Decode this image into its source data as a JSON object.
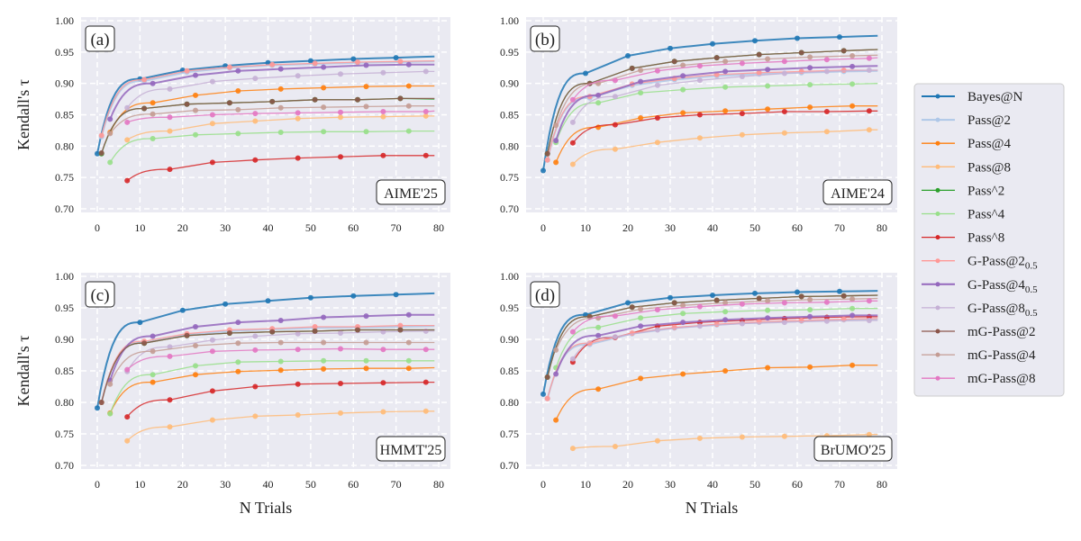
{
  "legend": [
    {
      "name": "Bayes@N",
      "sub": "",
      "color": "#1f77b4"
    },
    {
      "name": "Pass@2",
      "sub": "",
      "color": "#aec7e8"
    },
    {
      "name": "Pass@4",
      "sub": "",
      "color": "#ff7f0e"
    },
    {
      "name": "Pass@8",
      "sub": "",
      "color": "#ffbb78"
    },
    {
      "name": "Pass^2",
      "sub": "",
      "color": "#2ca02c"
    },
    {
      "name": "Pass^4",
      "sub": "",
      "color": "#98df8a"
    },
    {
      "name": "Pass^8",
      "sub": "",
      "color": "#d62728"
    },
    {
      "name": "G-Pass@2",
      "sub": "0.5",
      "color": "#ff9896"
    },
    {
      "name": "G-Pass@4",
      "sub": "0.5",
      "color": "#9467bd"
    },
    {
      "name": "G-Pass@8",
      "sub": "0.5",
      "color": "#c5b0d5"
    },
    {
      "name": "mG-Pass@2",
      "sub": "",
      "color": "#8c564b"
    },
    {
      "name": "mG-Pass@4",
      "sub": "",
      "color": "#c49c94"
    },
    {
      "name": "mG-Pass@8",
      "sub": "",
      "color": "#e377c2"
    }
  ],
  "chart_data": [
    {
      "type": "line",
      "panel_label": "(a)",
      "dataset": "AIME'25",
      "xlabel": "",
      "ylabel": "Kendall's τ",
      "xlim": [
        0,
        80
      ],
      "ylim": [
        0.7,
        1.0
      ],
      "xticks": [
        "0",
        "10",
        "20",
        "30",
        "40",
        "50",
        "60",
        "70",
        "80"
      ],
      "yticks": [
        "0.70",
        "0.75",
        "0.80",
        "0.85",
        "0.90",
        "0.95",
        "1.00"
      ],
      "grid": true,
      "x_end": 79,
      "marker_every": 10,
      "series": [
        {
          "name": "Bayes@N",
          "x_start": 0,
          "y": [
            0.788,
            0.907,
            0.921,
            0.928,
            0.933,
            0.936,
            0.939,
            0.941,
            0.943
          ]
        },
        {
          "name": "Pass@2",
          "x_start": 1,
          "y": [
            0.815,
            0.904,
            0.918,
            0.925,
            0.929,
            0.931,
            0.933,
            0.934,
            0.935
          ]
        },
        {
          "name": "Pass@4",
          "x_start": 3,
          "y": [
            0.822,
            0.869,
            0.881,
            0.888,
            0.891,
            0.893,
            0.895,
            0.896,
            0.896
          ]
        },
        {
          "name": "Pass@8",
          "x_start": 7,
          "y": [
            0.81,
            0.824,
            0.836,
            0.84,
            0.844,
            0.846,
            0.847,
            0.848,
            0.848
          ]
        },
        {
          "name": "Pass^2",
          "x_start": 1,
          "y": [
            0.788,
            0.86,
            0.867,
            0.869,
            0.871,
            0.874,
            0.874,
            0.876,
            0.875
          ]
        },
        {
          "name": "Pass^4",
          "x_start": 3,
          "y": [
            0.774,
            0.812,
            0.818,
            0.82,
            0.822,
            0.823,
            0.823,
            0.824,
            0.824
          ]
        },
        {
          "name": "Pass^8",
          "x_start": 7,
          "y": [
            0.745,
            0.763,
            0.774,
            0.778,
            0.781,
            0.783,
            0.785,
            0.785,
            0.785
          ]
        },
        {
          "name": "G-Pass@2_0.5",
          "x_start": 1,
          "y": [
            0.817,
            0.906,
            0.92,
            0.926,
            0.93,
            0.932,
            0.934,
            0.935,
            0.936
          ]
        },
        {
          "name": "G-Pass@4_0.5",
          "x_start": 3,
          "y": [
            0.843,
            0.9,
            0.913,
            0.92,
            0.923,
            0.926,
            0.929,
            0.93,
            0.93
          ]
        },
        {
          "name": "G-Pass@8_0.5",
          "x_start": 7,
          "y": [
            0.861,
            0.891,
            0.903,
            0.908,
            0.912,
            0.915,
            0.917,
            0.919,
            0.919
          ]
        },
        {
          "name": "mG-Pass@2",
          "x_start": 1,
          "y": [
            0.789,
            0.86,
            0.867,
            0.869,
            0.871,
            0.874,
            0.874,
            0.876,
            0.876
          ]
        },
        {
          "name": "mG-Pass@4",
          "x_start": 3,
          "y": [
            0.82,
            0.851,
            0.857,
            0.858,
            0.861,
            0.862,
            0.863,
            0.864,
            0.864
          ]
        },
        {
          "name": "mG-Pass@8",
          "x_start": 7,
          "y": [
            0.838,
            0.846,
            0.85,
            0.852,
            0.853,
            0.854,
            0.855,
            0.855,
            0.856
          ]
        }
      ]
    },
    {
      "type": "line",
      "panel_label": "(b)",
      "dataset": "AIME'24",
      "xlabel": "",
      "ylabel": "",
      "xlim": [
        0,
        80
      ],
      "ylim": [
        0.7,
        1.0
      ],
      "xticks": [
        "0",
        "10",
        "20",
        "30",
        "40",
        "50",
        "60",
        "70",
        "80"
      ],
      "yticks": [
        "0.70",
        "0.75",
        "0.80",
        "0.85",
        "0.90",
        "0.95",
        "1.00"
      ],
      "grid": true,
      "x_end": 79,
      "marker_every": 10,
      "series": [
        {
          "name": "Bayes@N",
          "x_start": 0,
          "y": [
            0.761,
            0.916,
            0.944,
            0.956,
            0.963,
            0.968,
            0.972,
            0.974,
            0.976
          ]
        },
        {
          "name": "Pass@2",
          "x_start": 1,
          "y": [
            0.778,
            0.877,
            0.897,
            0.906,
            0.912,
            0.915,
            0.917,
            0.919,
            0.92
          ]
        },
        {
          "name": "Pass@4",
          "x_start": 3,
          "y": [
            0.774,
            0.83,
            0.845,
            0.853,
            0.856,
            0.859,
            0.862,
            0.864,
            0.864
          ]
        },
        {
          "name": "Pass@8",
          "x_start": 7,
          "y": [
            0.771,
            0.795,
            0.806,
            0.813,
            0.818,
            0.821,
            0.823,
            0.826,
            0.826
          ]
        },
        {
          "name": "Pass^2",
          "x_start": 1,
          "y": [
            0.788,
            0.9,
            0.924,
            0.935,
            0.941,
            0.946,
            0.949,
            0.952,
            0.954
          ]
        },
        {
          "name": "Pass^4",
          "x_start": 3,
          "y": [
            0.806,
            0.869,
            0.885,
            0.89,
            0.894,
            0.896,
            0.898,
            0.899,
            0.9
          ]
        },
        {
          "name": "Pass^8",
          "x_start": 7,
          "y": [
            0.805,
            0.834,
            0.845,
            0.85,
            0.852,
            0.855,
            0.855,
            0.856,
            0.856
          ]
        },
        {
          "name": "G-Pass@2_0.5",
          "x_start": 1,
          "y": [
            0.778,
            0.879,
            0.899,
            0.908,
            0.914,
            0.917,
            0.919,
            0.921,
            0.921
          ]
        },
        {
          "name": "G-Pass@4_0.5",
          "x_start": 3,
          "y": [
            0.809,
            0.881,
            0.903,
            0.912,
            0.919,
            0.922,
            0.925,
            0.927,
            0.928
          ]
        },
        {
          "name": "G-Pass@8_0.5",
          "x_start": 7,
          "y": [
            0.838,
            0.879,
            0.897,
            0.905,
            0.911,
            0.916,
            0.919,
            0.921,
            0.921
          ]
        },
        {
          "name": "mG-Pass@2",
          "x_start": 1,
          "y": [
            0.788,
            0.9,
            0.924,
            0.935,
            0.941,
            0.946,
            0.949,
            0.952,
            0.954
          ]
        },
        {
          "name": "mG-Pass@4",
          "x_start": 3,
          "y": [
            0.833,
            0.9,
            0.921,
            0.929,
            0.935,
            0.939,
            0.942,
            0.944,
            0.945
          ]
        },
        {
          "name": "mG-Pass@8",
          "x_start": 7,
          "y": [
            0.874,
            0.905,
            0.92,
            0.928,
            0.932,
            0.935,
            0.938,
            0.94,
            0.941
          ]
        }
      ]
    },
    {
      "type": "line",
      "panel_label": "(c)",
      "dataset": "HMMT'25",
      "xlabel": "N Trials",
      "ylabel": "Kendall's τ",
      "xlim": [
        0,
        80
      ],
      "ylim": [
        0.7,
        1.0
      ],
      "xticks": [
        "0",
        "10",
        "20",
        "30",
        "40",
        "50",
        "60",
        "70",
        "80"
      ],
      "yticks": [
        "0.70",
        "0.75",
        "0.80",
        "0.85",
        "0.90",
        "0.95",
        "1.00"
      ],
      "grid": true,
      "x_end": 79,
      "marker_every": 10,
      "series": [
        {
          "name": "Bayes@N",
          "x_start": 0,
          "y": [
            0.791,
            0.927,
            0.946,
            0.956,
            0.961,
            0.966,
            0.969,
            0.971,
            0.973
          ]
        },
        {
          "name": "Pass@2",
          "x_start": 1,
          "y": [
            0.8,
            0.895,
            0.907,
            0.913,
            0.916,
            0.918,
            0.919,
            0.92,
            0.921
          ]
        },
        {
          "name": "Pass@4",
          "x_start": 3,
          "y": [
            0.783,
            0.832,
            0.844,
            0.849,
            0.851,
            0.853,
            0.854,
            0.854,
            0.855
          ]
        },
        {
          "name": "Pass@8",
          "x_start": 7,
          "y": [
            0.739,
            0.761,
            0.772,
            0.778,
            0.78,
            0.783,
            0.785,
            0.786,
            0.786
          ]
        },
        {
          "name": "Pass^2",
          "x_start": 1,
          "y": [
            0.8,
            0.894,
            0.906,
            0.91,
            0.912,
            0.913,
            0.915,
            0.915,
            0.915
          ]
        },
        {
          "name": "Pass^4",
          "x_start": 3,
          "y": [
            0.782,
            0.844,
            0.858,
            0.864,
            0.865,
            0.866,
            0.866,
            0.866,
            0.866
          ]
        },
        {
          "name": "Pass^8",
          "x_start": 7,
          "y": [
            0.777,
            0.804,
            0.818,
            0.825,
            0.829,
            0.83,
            0.831,
            0.832,
            0.832
          ]
        },
        {
          "name": "G-Pass@2_0.5",
          "x_start": 1,
          "y": [
            0.8,
            0.897,
            0.909,
            0.915,
            0.917,
            0.92,
            0.92,
            0.922,
            0.922
          ]
        },
        {
          "name": "G-Pass@4_0.5",
          "x_start": 3,
          "y": [
            0.835,
            0.905,
            0.92,
            0.927,
            0.93,
            0.935,
            0.937,
            0.939,
            0.939
          ]
        },
        {
          "name": "G-Pass@8_0.5",
          "x_start": 7,
          "y": [
            0.849,
            0.888,
            0.899,
            0.905,
            0.909,
            0.91,
            0.912,
            0.913,
            0.913
          ]
        },
        {
          "name": "mG-Pass@2",
          "x_start": 1,
          "y": [
            0.8,
            0.894,
            0.906,
            0.91,
            0.912,
            0.913,
            0.915,
            0.915,
            0.915
          ]
        },
        {
          "name": "mG-Pass@4",
          "x_start": 3,
          "y": [
            0.829,
            0.881,
            0.89,
            0.894,
            0.895,
            0.895,
            0.895,
            0.895,
            0.895
          ]
        },
        {
          "name": "mG-Pass@8",
          "x_start": 7,
          "y": [
            0.852,
            0.873,
            0.881,
            0.883,
            0.884,
            0.885,
            0.884,
            0.884,
            0.884
          ]
        }
      ]
    },
    {
      "type": "line",
      "panel_label": "(d)",
      "dataset": "BrUMO'25",
      "xlabel": "N Trials",
      "ylabel": "",
      "xlim": [
        0,
        80
      ],
      "ylim": [
        0.7,
        1.0
      ],
      "xticks": [
        "0",
        "10",
        "20",
        "30",
        "40",
        "50",
        "60",
        "70",
        "80"
      ],
      "yticks": [
        "0.70",
        "0.75",
        "0.80",
        "0.85",
        "0.90",
        "0.95",
        "1.00"
      ],
      "grid": true,
      "x_end": 79,
      "marker_every": 10,
      "series": [
        {
          "name": "Bayes@N",
          "x_start": 0,
          "y": [
            0.813,
            0.939,
            0.958,
            0.966,
            0.97,
            0.973,
            0.975,
            0.976,
            0.977
          ]
        },
        {
          "name": "Pass@2",
          "x_start": 1,
          "y": [
            0.806,
            0.892,
            0.909,
            0.918,
            0.923,
            0.927,
            0.929,
            0.931,
            0.932
          ]
        },
        {
          "name": "Pass@4",
          "x_start": 3,
          "y": [
            0.772,
            0.821,
            0.838,
            0.845,
            0.85,
            0.855,
            0.856,
            0.859,
            0.859
          ]
        },
        {
          "name": "Pass@8",
          "x_start": 7,
          "y": [
            0.727,
            0.73,
            0.739,
            0.743,
            0.745,
            0.746,
            0.747,
            0.749,
            0.749
          ]
        },
        {
          "name": "Pass^2",
          "x_start": 1,
          "y": [
            0.84,
            0.936,
            0.951,
            0.958,
            0.962,
            0.965,
            0.968,
            0.969,
            0.97
          ]
        },
        {
          "name": "Pass^4",
          "x_start": 3,
          "y": [
            0.855,
            0.919,
            0.934,
            0.941,
            0.944,
            0.946,
            0.947,
            0.949,
            0.949
          ]
        },
        {
          "name": "Pass^8",
          "x_start": 7,
          "y": [
            0.864,
            0.903,
            0.921,
            0.927,
            0.93,
            0.933,
            0.935,
            0.936,
            0.936
          ]
        },
        {
          "name": "G-Pass@2_0.5",
          "x_start": 1,
          "y": [
            0.806,
            0.894,
            0.91,
            0.919,
            0.924,
            0.928,
            0.93,
            0.932,
            0.933
          ]
        },
        {
          "name": "G-Pass@4_0.5",
          "x_start": 3,
          "y": [
            0.845,
            0.906,
            0.921,
            0.927,
            0.931,
            0.934,
            0.936,
            0.938,
            0.938
          ]
        },
        {
          "name": "G-Pass@8_0.5",
          "x_start": 7,
          "y": [
            0.869,
            0.904,
            0.915,
            0.921,
            0.925,
            0.927,
            0.929,
            0.93,
            0.93
          ]
        },
        {
          "name": "mG-Pass@2",
          "x_start": 1,
          "y": [
            0.84,
            0.936,
            0.951,
            0.958,
            0.962,
            0.965,
            0.968,
            0.969,
            0.97
          ]
        },
        {
          "name": "mG-Pass@4",
          "x_start": 3,
          "y": [
            0.883,
            0.934,
            0.948,
            0.954,
            0.958,
            0.961,
            0.963,
            0.964,
            0.965
          ]
        },
        {
          "name": "mG-Pass@8",
          "x_start": 7,
          "y": [
            0.912,
            0.937,
            0.947,
            0.952,
            0.956,
            0.958,
            0.959,
            0.961,
            0.961
          ]
        }
      ]
    }
  ]
}
